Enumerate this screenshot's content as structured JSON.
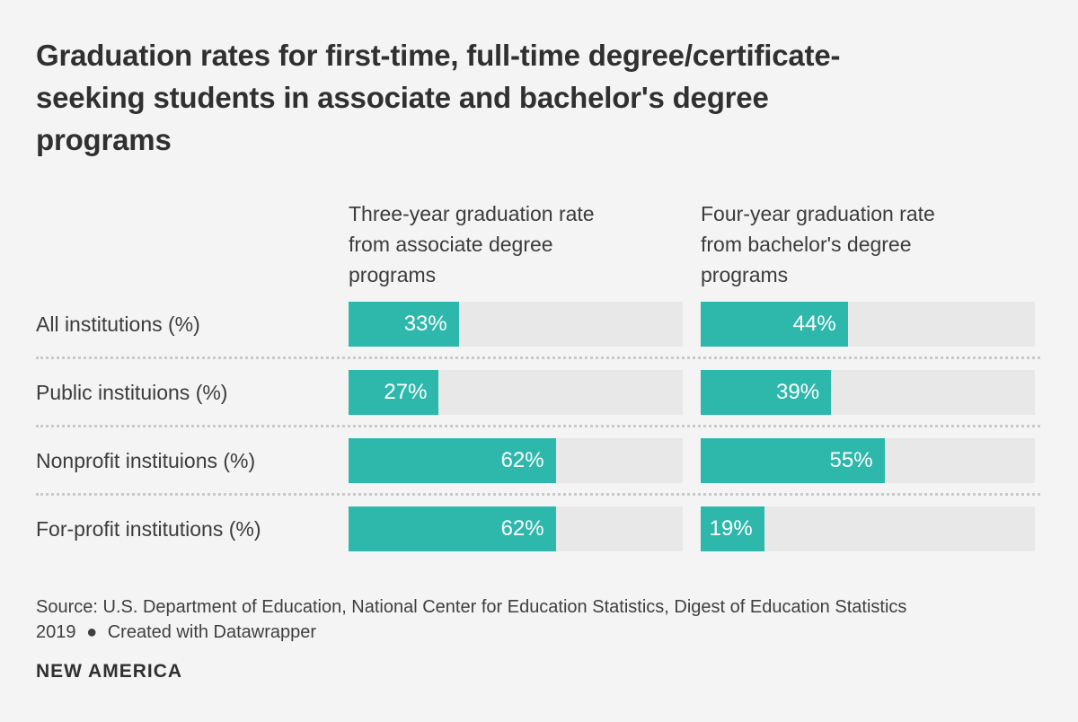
{
  "colors": {
    "accent_teal": "#2eb8ab",
    "bar_track": "#e8e8e8",
    "page_background": "#f4f4f4",
    "text_dark": "#303030",
    "value_label": "#ffffff"
  },
  "title_lines": [
    "Graduation rates for first-time, full-time degree/certificate-",
    "seeking students in associate and bachelor's degree",
    "programs"
  ],
  "column_headers": [
    {
      "lines": [
        "Three-year graduation rate",
        "from associate degree",
        "programs"
      ]
    },
    {
      "lines": [
        "Four-year graduation rate",
        "from bachelor's degree",
        "programs"
      ]
    }
  ],
  "footer": {
    "source_label": "Source:",
    "source_text": "U.S. Department of Education, National Center for Education Statistics, Digest of Education Statistics 2019",
    "bullet": "●",
    "attribution": "Created with Datawrapper"
  },
  "logo_text": "NEW AMERICA",
  "chart_data": {
    "type": "bar",
    "orientation": "horizontal",
    "grid": false,
    "legend_position": "column-headers",
    "title": "Graduation rates for first-time, full-time degree/certificate-seeking students in associate and bachelor's degree programs",
    "categories": [
      "All institutions (%)",
      "Public instituions (%)",
      "Nonprofit instituions (%)",
      "For-profit institutions (%)"
    ],
    "series": [
      {
        "name": "Three-year graduation rate from associate degree programs",
        "values": [
          33,
          27,
          62,
          62
        ]
      },
      {
        "name": "Four-year graduation rate from bachelor's degree programs",
        "values": [
          44,
          39,
          55,
          19
        ]
      }
    ],
    "value_suffix": "%",
    "xlim": [
      0,
      100
    ],
    "bar_scale_max": 100
  }
}
